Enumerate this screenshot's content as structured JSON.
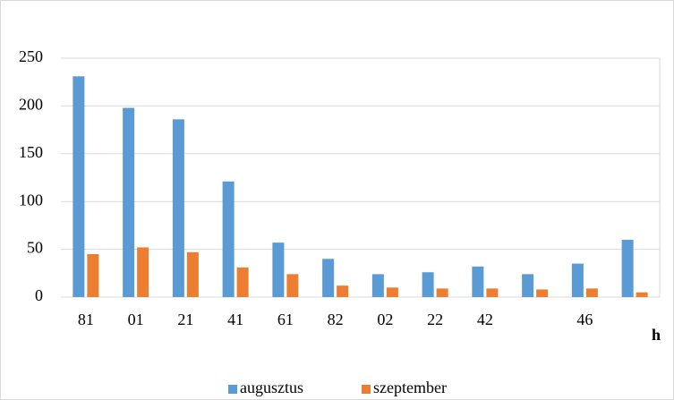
{
  "chart_data": {
    "type": "bar",
    "categories": [
      "81",
      "01",
      "21",
      "41",
      "61",
      "82",
      "02",
      "22",
      "42",
      null,
      "46",
      null
    ],
    "series": [
      {
        "name": "augusztus",
        "color": "#5b9bd5",
        "values": [
          231,
          198,
          186,
          121,
          57,
          40,
          24,
          26,
          32,
          24,
          35,
          60
        ]
      },
      {
        "name": "szeptember",
        "color": "#ed7d31",
        "values": [
          45,
          52,
          47,
          31,
          24,
          12,
          10,
          9,
          9,
          8,
          9,
          5
        ]
      }
    ],
    "x_label": "h",
    "ylim": [
      0,
      250
    ],
    "yticks": [
      0,
      50,
      100,
      150,
      200,
      250
    ],
    "grid": true,
    "legend": "bottom"
  }
}
